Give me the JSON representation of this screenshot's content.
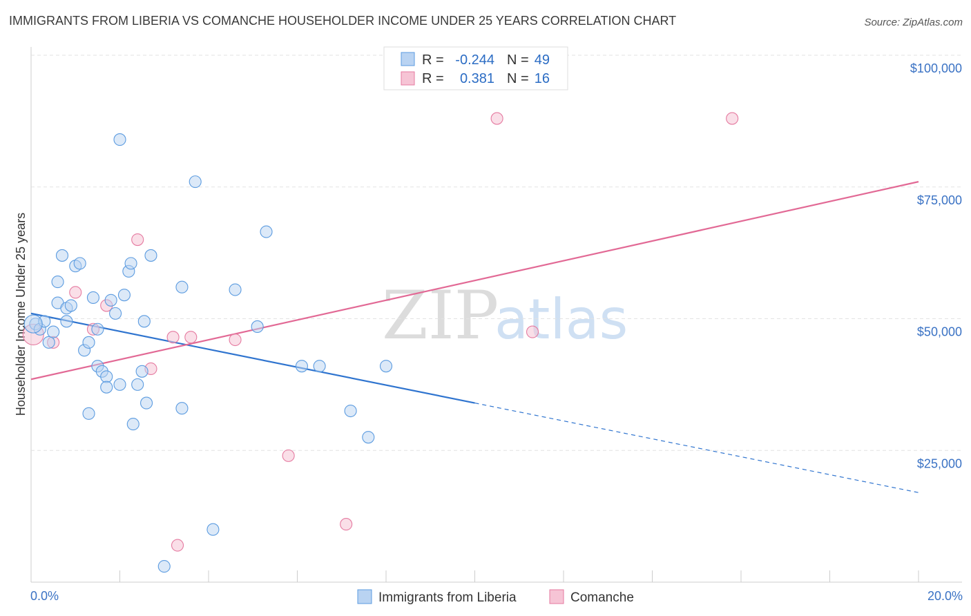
{
  "title": "IMMIGRANTS FROM LIBERIA VS COMANCHE HOUSEHOLDER INCOME UNDER 25 YEARS CORRELATION CHART",
  "source": "Source: ZipAtlas.com",
  "watermark": {
    "zip": "ZIP",
    "atlas": "atlas"
  },
  "colors": {
    "blue": "#5b9be0",
    "blue_fill": "#b9d3f2",
    "pink": "#e57aa0",
    "pink_fill": "#f6c4d5",
    "blue_line": "#2f74cf",
    "pink_line": "#e26995"
  },
  "legend": {
    "rows": [
      {
        "r_label": "R =",
        "r_value": "-0.244",
        "n_label": "N =",
        "n_value": "49"
      },
      {
        "r_label": "R =",
        "r_value": "0.381",
        "n_label": "N =",
        "n_value": "16"
      }
    ]
  },
  "bottom_legend": {
    "series1": "Immigrants from Liberia",
    "series2": "Comanche"
  },
  "chart_data": {
    "type": "scatter",
    "title": "IMMIGRANTS FROM LIBERIA VS COMANCHE HOUSEHOLDER INCOME UNDER 25 YEARS CORRELATION CHART",
    "xlabel": "",
    "ylabel": "Householder Income Under 25 years",
    "xlim": [
      0,
      20
    ],
    "ylim": [
      0,
      100000
    ],
    "x_tick_labels": [
      "0.0%",
      "20.0%"
    ],
    "y_tick_labels": [
      "$100,000",
      "$75,000",
      "$50,000",
      "$25,000"
    ],
    "y_tick_values": [
      100000,
      75000,
      50000,
      25000
    ],
    "series": [
      {
        "name": "Immigrants from Liberia",
        "r": -0.244,
        "n": 49,
        "trend": {
          "x0": 0,
          "y0": 51000,
          "x1": 20,
          "y1": 17000,
          "solid_until_x": 10
        },
        "points": [
          [
            0.1,
            49000
          ],
          [
            0.2,
            48000
          ],
          [
            0.3,
            49500
          ],
          [
            0.4,
            45500
          ],
          [
            0.5,
            47500
          ],
          [
            0.6,
            53000
          ],
          [
            0.6,
            57000
          ],
          [
            0.7,
            62000
          ],
          [
            0.8,
            52000
          ],
          [
            0.8,
            49500
          ],
          [
            0.9,
            52500
          ],
          [
            1.0,
            60000
          ],
          [
            1.1,
            60500
          ],
          [
            1.2,
            44000
          ],
          [
            1.3,
            45500
          ],
          [
            1.3,
            32000
          ],
          [
            1.4,
            54000
          ],
          [
            1.5,
            48000
          ],
          [
            1.5,
            41000
          ],
          [
            1.6,
            40000
          ],
          [
            1.7,
            39000
          ],
          [
            1.7,
            37000
          ],
          [
            1.8,
            53500
          ],
          [
            1.9,
            51000
          ],
          [
            2.0,
            37500
          ],
          [
            2.0,
            84000
          ],
          [
            2.1,
            54500
          ],
          [
            2.2,
            59000
          ],
          [
            2.25,
            60500
          ],
          [
            2.3,
            30000
          ],
          [
            2.4,
            37500
          ],
          [
            2.5,
            40000
          ],
          [
            2.55,
            49500
          ],
          [
            2.6,
            34000
          ],
          [
            2.7,
            62000
          ],
          [
            3.0,
            3000
          ],
          [
            3.4,
            56000
          ],
          [
            3.4,
            33000
          ],
          [
            3.7,
            76000
          ],
          [
            4.1,
            10000
          ],
          [
            4.6,
            55500
          ],
          [
            5.1,
            48500
          ],
          [
            5.3,
            66500
          ],
          [
            6.1,
            41000
          ],
          [
            6.5,
            41000
          ],
          [
            7.2,
            32500
          ],
          [
            7.6,
            27500
          ],
          [
            8.0,
            41000
          ],
          [
            0.05,
            49000
          ]
        ]
      },
      {
        "name": "Comanche",
        "r": 0.381,
        "n": 16,
        "trend": {
          "x0": 0,
          "y0": 38500,
          "x1": 20,
          "y1": 76000
        },
        "points": [
          [
            0.05,
            47000
          ],
          [
            0.5,
            45500
          ],
          [
            1.0,
            55000
          ],
          [
            1.4,
            48000
          ],
          [
            1.7,
            52500
          ],
          [
            2.4,
            65000
          ],
          [
            2.7,
            40500
          ],
          [
            3.2,
            46500
          ],
          [
            3.3,
            7000
          ],
          [
            3.6,
            46500
          ],
          [
            4.6,
            46000
          ],
          [
            5.8,
            24000
          ],
          [
            7.1,
            11000
          ],
          [
            10.5,
            88000
          ],
          [
            11.3,
            47500
          ],
          [
            15.8,
            88000
          ]
        ]
      }
    ]
  }
}
